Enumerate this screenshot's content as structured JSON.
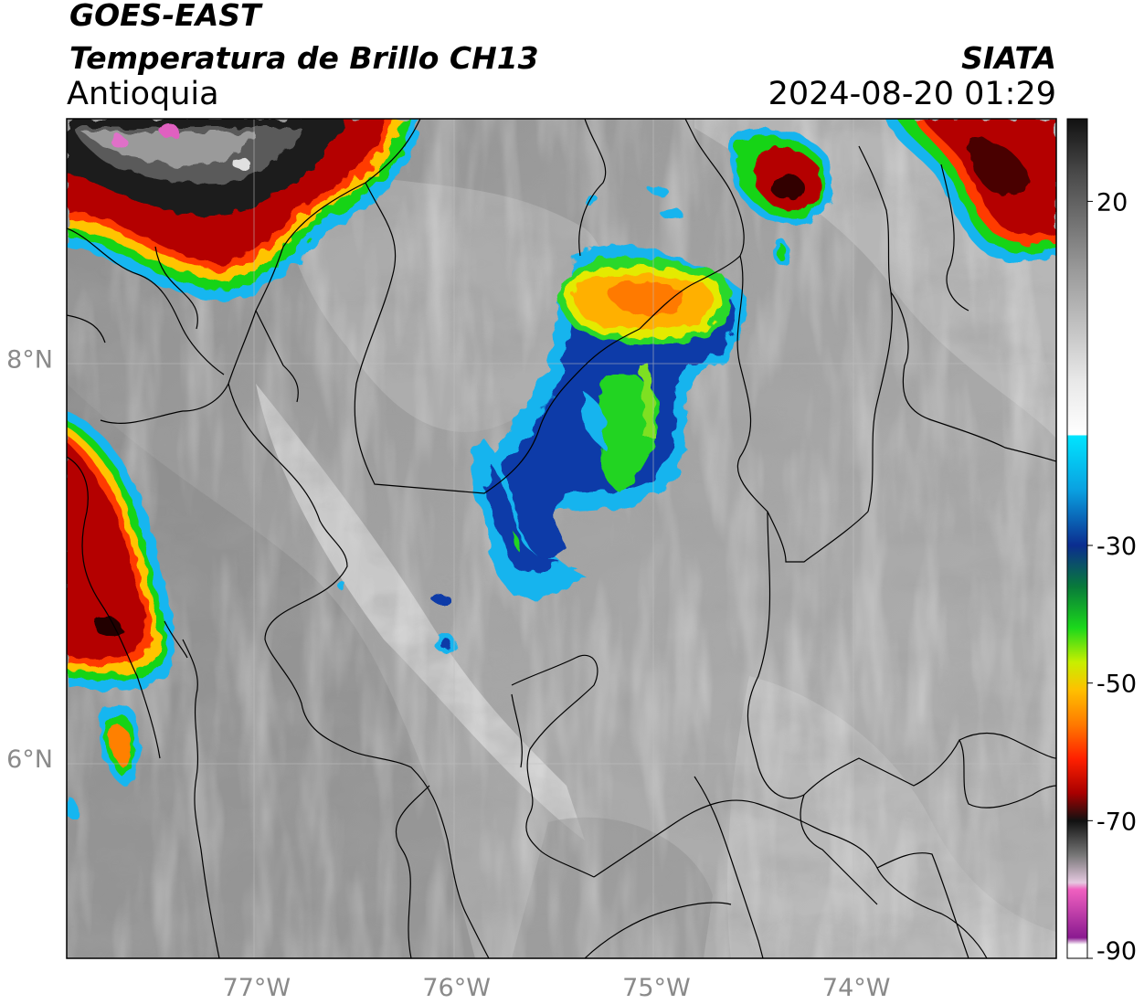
{
  "title": {
    "line1": "GOES-EAST",
    "line2": "Temperatura de Brillo CH13",
    "region": "Antioquia",
    "agency": "SIATA",
    "datetime": "2024-08-20 01:29"
  },
  "map": {
    "lon_range": [
      -77.95,
      -73.0
    ],
    "lat_range": [
      5.0,
      9.2
    ],
    "lon_ticks": [
      {
        "value": -77,
        "label": "77°W"
      },
      {
        "value": -76,
        "label": "76°W"
      },
      {
        "value": -75,
        "label": "75°W"
      },
      {
        "value": -74,
        "label": "74°W"
      }
    ],
    "lat_ticks": [
      {
        "value": 8,
        "label": "8°N"
      },
      {
        "value": 6,
        "label": "6°N"
      }
    ],
    "grid": true
  },
  "colorbar": {
    "range": [
      -90,
      32
    ],
    "ticks": [
      {
        "value": 20,
        "label": "20"
      },
      {
        "value": -30,
        "label": "-30"
      },
      {
        "value": -50,
        "label": "-50"
      },
      {
        "value": -70,
        "label": "-70"
      },
      {
        "value": -90,
        "label": "-90"
      }
    ],
    "stops": [
      {
        "value": 32,
        "color": "#111111"
      },
      {
        "value": 24,
        "color": "#4a4a4a"
      },
      {
        "value": 10,
        "color": "#9a9a9a"
      },
      {
        "value": -6,
        "color": "#e8e8e8"
      },
      {
        "value": -14,
        "color": "#ffffff"
      },
      {
        "value": -14.01,
        "color": "#00e5ff"
      },
      {
        "value": -22,
        "color": "#0aa0e0"
      },
      {
        "value": -30,
        "color": "#0b2d8f"
      },
      {
        "value": -36,
        "color": "#087a3a"
      },
      {
        "value": -42,
        "color": "#1bd81b"
      },
      {
        "value": -47,
        "color": "#c8ef00"
      },
      {
        "value": -51,
        "color": "#ffc000"
      },
      {
        "value": -56,
        "color": "#ff7a00"
      },
      {
        "value": -61,
        "color": "#ff2000"
      },
      {
        "value": -66,
        "color": "#a80000"
      },
      {
        "value": -70,
        "color": "#111111"
      },
      {
        "value": -75,
        "color": "#777777"
      },
      {
        "value": -79,
        "color": "#e5c8e0"
      },
      {
        "value": -80,
        "color": "#f060c0"
      },
      {
        "value": -87,
        "color": "#8a1a90"
      },
      {
        "value": -88,
        "color": "#ffffff"
      },
      {
        "value": -90,
        "color": "#ffffff"
      }
    ]
  }
}
